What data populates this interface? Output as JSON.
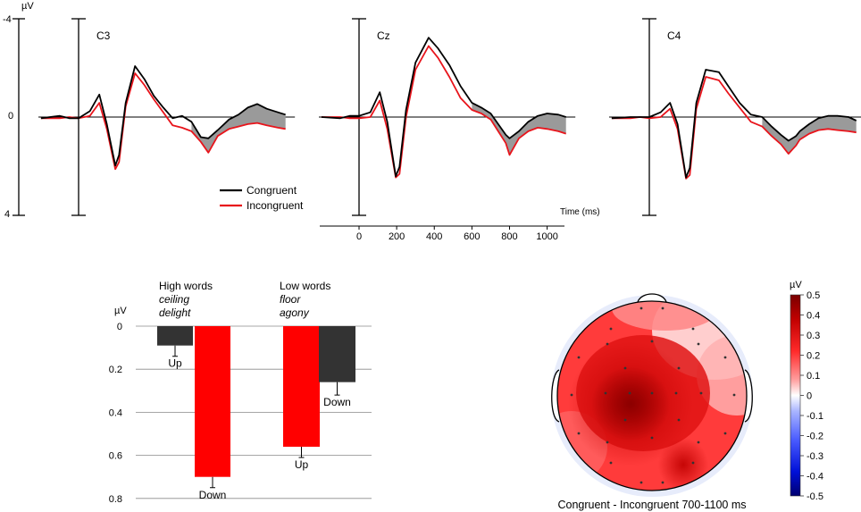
{
  "chart_data": [
    {
      "type": "line",
      "title": "ERP waveforms",
      "y_unit": "µV",
      "y_ticks": [
        "-4",
        "0",
        "4"
      ],
      "ylim": [
        -4,
        4
      ],
      "x_axis_label": "Time (ms)",
      "x_ticks": [
        0,
        200,
        400,
        600,
        800,
        1000
      ],
      "xlim": [
        -200,
        1150
      ],
      "legend": [
        {
          "name": "Congruent",
          "color": "#000000"
        },
        {
          "name": "Incongruent",
          "color": "#e8141b"
        }
      ],
      "electrodes": [
        {
          "name": "C3",
          "congruent": [
            [
              -200,
              0.05
            ],
            [
              -100,
              -0.05
            ],
            [
              -50,
              0.05
            ],
            [
              0,
              0.05
            ],
            [
              60,
              -0.25
            ],
            [
              110,
              -0.95
            ],
            [
              150,
              0.3
            ],
            [
              195,
              2.05
            ],
            [
              215,
              1.6
            ],
            [
              250,
              -0.6
            ],
            [
              300,
              -2.15
            ],
            [
              350,
              -1.6
            ],
            [
              400,
              -0.9
            ],
            [
              450,
              -0.4
            ],
            [
              500,
              0.05
            ],
            [
              550,
              -0.05
            ],
            [
              600,
              0.2
            ],
            [
              650,
              0.85
            ],
            [
              690,
              0.9
            ],
            [
              740,
              0.55
            ],
            [
              800,
              0.1
            ],
            [
              850,
              -0.1
            ],
            [
              900,
              -0.4
            ],
            [
              950,
              -0.55
            ],
            [
              1000,
              -0.35
            ],
            [
              1060,
              -0.2
            ],
            [
              1100,
              -0.1
            ]
          ],
          "incongruent": [
            [
              -200,
              0.05
            ],
            [
              -100,
              0.05
            ],
            [
              -50,
              0.0
            ],
            [
              0,
              0.05
            ],
            [
              60,
              -0.05
            ],
            [
              110,
              -0.6
            ],
            [
              150,
              0.5
            ],
            [
              195,
              2.2
            ],
            [
              215,
              1.9
            ],
            [
              250,
              -0.45
            ],
            [
              300,
              -1.85
            ],
            [
              350,
              -1.35
            ],
            [
              400,
              -0.75
            ],
            [
              450,
              -0.2
            ],
            [
              500,
              0.35
            ],
            [
              550,
              0.45
            ],
            [
              600,
              0.6
            ],
            [
              650,
              1.05
            ],
            [
              690,
              1.5
            ],
            [
              740,
              0.8
            ],
            [
              800,
              0.5
            ],
            [
              850,
              0.4
            ],
            [
              900,
              0.3
            ],
            [
              950,
              0.25
            ],
            [
              1000,
              0.35
            ],
            [
              1060,
              0.45
            ],
            [
              1100,
              0.5
            ]
          ]
        },
        {
          "name": "Cz",
          "congruent": [
            [
              -200,
              0.0
            ],
            [
              -100,
              0.05
            ],
            [
              -50,
              -0.05
            ],
            [
              0,
              -0.05
            ],
            [
              60,
              -0.2
            ],
            [
              110,
              -1.05
            ],
            [
              150,
              0.2
            ],
            [
              195,
              2.5
            ],
            [
              215,
              2.1
            ],
            [
              250,
              -0.3
            ],
            [
              300,
              -2.3
            ],
            [
              370,
              -3.35
            ],
            [
              420,
              -2.9
            ],
            [
              480,
              -2.2
            ],
            [
              540,
              -1.3
            ],
            [
              600,
              -0.6
            ],
            [
              650,
              -0.4
            ],
            [
              700,
              -0.15
            ],
            [
              740,
              0.3
            ],
            [
              780,
              0.75
            ],
            [
              800,
              0.9
            ],
            [
              850,
              0.6
            ],
            [
              900,
              0.2
            ],
            [
              950,
              -0.05
            ],
            [
              1000,
              -0.15
            ],
            [
              1060,
              -0.1
            ],
            [
              1100,
              0.0
            ]
          ],
          "incongruent": [
            [
              -200,
              0.0
            ],
            [
              -100,
              0.0
            ],
            [
              -50,
              0.05
            ],
            [
              0,
              0.05
            ],
            [
              60,
              0.0
            ],
            [
              110,
              -0.7
            ],
            [
              150,
              0.5
            ],
            [
              195,
              2.55
            ],
            [
              215,
              2.4
            ],
            [
              250,
              0.0
            ],
            [
              300,
              -2.0
            ],
            [
              370,
              -3.0
            ],
            [
              420,
              -2.5
            ],
            [
              480,
              -1.7
            ],
            [
              540,
              -0.8
            ],
            [
              600,
              -0.3
            ],
            [
              650,
              -0.15
            ],
            [
              700,
              0.1
            ],
            [
              740,
              0.6
            ],
            [
              780,
              1.1
            ],
            [
              800,
              1.6
            ],
            [
              850,
              0.9
            ],
            [
              900,
              0.6
            ],
            [
              950,
              0.45
            ],
            [
              1000,
              0.5
            ],
            [
              1060,
              0.6
            ],
            [
              1100,
              0.7
            ]
          ]
        },
        {
          "name": "C4",
          "congruent": [
            [
              -200,
              0.05
            ],
            [
              -100,
              0.0
            ],
            [
              -50,
              0.0
            ],
            [
              0,
              0.0
            ],
            [
              60,
              -0.2
            ],
            [
              110,
              -0.6
            ],
            [
              150,
              0.3
            ],
            [
              195,
              2.55
            ],
            [
              215,
              2.15
            ],
            [
              250,
              -0.6
            ],
            [
              300,
              -2.0
            ],
            [
              370,
              -1.9
            ],
            [
              420,
              -1.3
            ],
            [
              480,
              -0.6
            ],
            [
              540,
              -0.1
            ],
            [
              600,
              0.0
            ],
            [
              650,
              0.4
            ],
            [
              700,
              0.75
            ],
            [
              740,
              1.0
            ],
            [
              780,
              0.8
            ],
            [
              800,
              0.6
            ],
            [
              850,
              0.3
            ],
            [
              900,
              0.05
            ],
            [
              950,
              -0.05
            ],
            [
              1000,
              -0.05
            ],
            [
              1060,
              0.0
            ],
            [
              1100,
              0.15
            ]
          ],
          "incongruent": [
            [
              -200,
              0.05
            ],
            [
              -100,
              0.05
            ],
            [
              -50,
              0.0
            ],
            [
              0,
              0.05
            ],
            [
              60,
              0.0
            ],
            [
              110,
              -0.35
            ],
            [
              150,
              0.5
            ],
            [
              195,
              2.6
            ],
            [
              215,
              2.45
            ],
            [
              250,
              -0.35
            ],
            [
              300,
              -1.7
            ],
            [
              370,
              -1.55
            ],
            [
              420,
              -1.0
            ],
            [
              480,
              -0.4
            ],
            [
              540,
              0.2
            ],
            [
              600,
              0.4
            ],
            [
              650,
              0.8
            ],
            [
              700,
              1.15
            ],
            [
              740,
              1.55
            ],
            [
              780,
              1.2
            ],
            [
              800,
              0.95
            ],
            [
              850,
              0.7
            ],
            [
              900,
              0.55
            ],
            [
              950,
              0.5
            ],
            [
              1000,
              0.55
            ],
            [
              1060,
              0.6
            ],
            [
              1100,
              0.65
            ]
          ]
        }
      ]
    },
    {
      "type": "bar",
      "ylabel": "µV",
      "ylim": [
        0,
        0.8
      ],
      "y_ticks": [
        "0",
        "0.2",
        "0.4",
        "0.6",
        "0.8"
      ],
      "groups": [
        {
          "title": "High words",
          "examples": [
            "ceiling",
            "delight"
          ],
          "bars": [
            {
              "label": "Up",
              "value": 0.09,
              "err": 0.05,
              "color": "#333333"
            },
            {
              "label": "Down",
              "value": 0.7,
              "err": 0.05,
              "color": "#ff0000"
            }
          ]
        },
        {
          "title": "Low words",
          "examples": [
            "floor",
            "agony"
          ],
          "bars": [
            {
              "label": "Up",
              "value": 0.56,
              "err": 0.05,
              "color": "#ff0000"
            },
            {
              "label": "Down",
              "value": 0.26,
              "err": 0.06,
              "color": "#333333"
            }
          ]
        }
      ]
    },
    {
      "type": "heatmap",
      "title": "Congruent - Incongruent 700-1100 ms",
      "colorbar_unit": "µV",
      "colorbar_ticks": [
        "0.5",
        "0.4",
        "0.3",
        "0.2",
        "0.1",
        "0",
        "-0.1",
        "-0.2",
        "-0.3",
        "-0.4",
        "-0.5"
      ],
      "range": [
        -0.5,
        0.5
      ]
    }
  ]
}
